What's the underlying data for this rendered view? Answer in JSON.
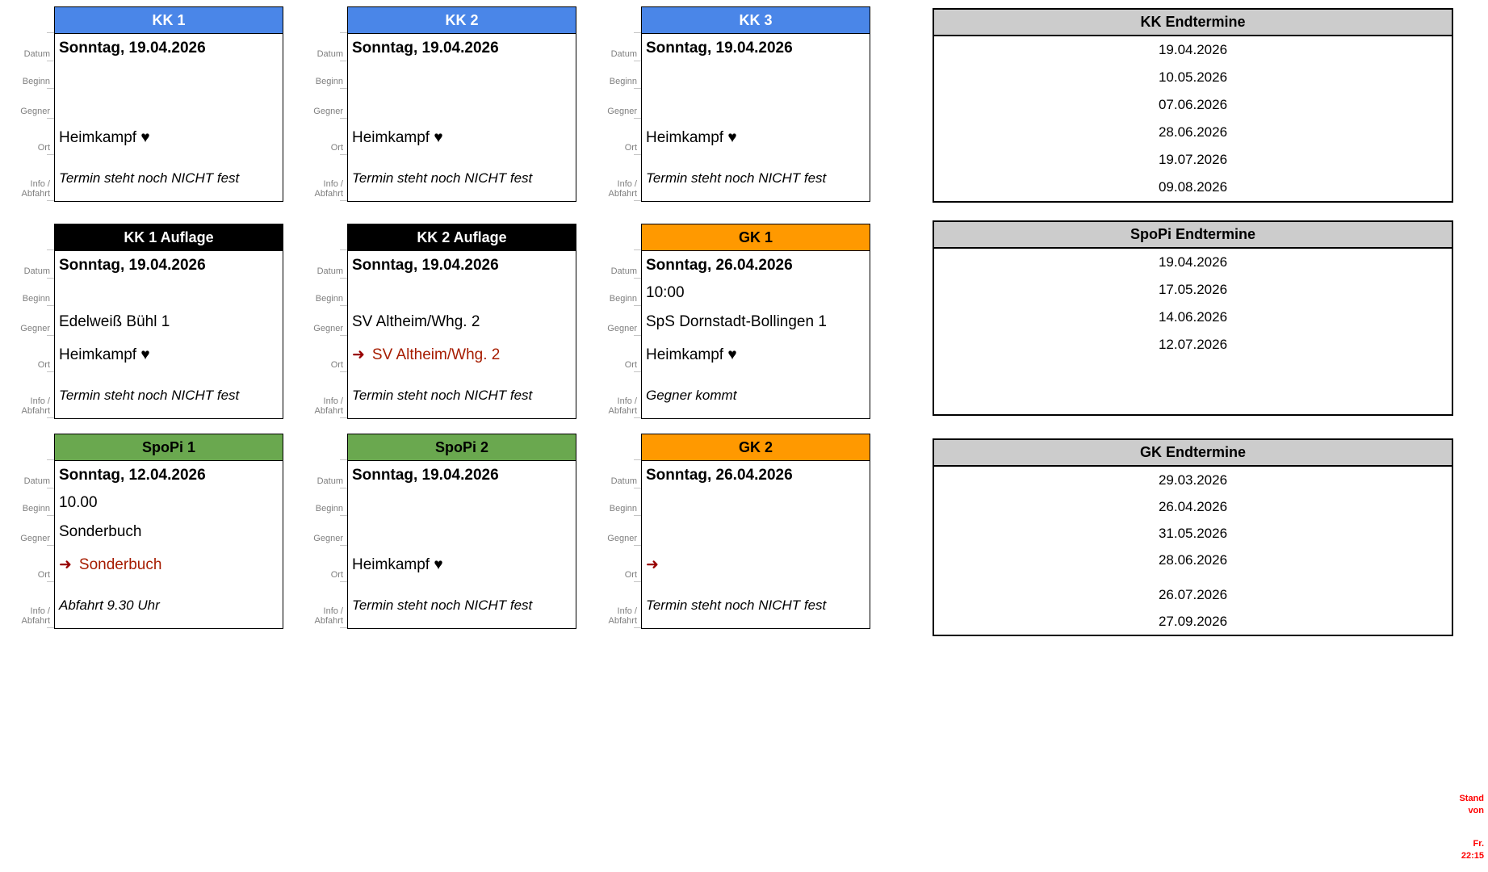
{
  "row_labels": [
    "Datum",
    "Beginn",
    "Gegner",
    "Ort",
    "Info / Abfahrt"
  ],
  "icons": {
    "away_arrow": "➜",
    "home_heart": "♥"
  },
  "colors": {
    "kk_header": "#4a86e8",
    "auflage_header": "#000000",
    "gk_header": "#ff9900",
    "spopi_header": "#6aa84f",
    "table_header_bg": "#cccccc",
    "away_arrow": "#980000",
    "away_text": "#a61c00",
    "stand": "#ff0000"
  },
  "cards": [
    {
      "title": "KK 1",
      "header_bg": "#4a86e8",
      "header_fg": "#ffffff",
      "datum": "Sonntag, 19.04.2026",
      "beginn": "",
      "gegner": "",
      "ort_arrow": "",
      "ort_text": "Heimkampf ♥",
      "away": false,
      "info": "Termin steht noch NICHT fest"
    },
    {
      "title": "KK 2",
      "header_bg": "#4a86e8",
      "header_fg": "#ffffff",
      "datum": "Sonntag, 19.04.2026",
      "beginn": "",
      "gegner": "",
      "ort_arrow": "",
      "ort_text": "Heimkampf ♥",
      "away": false,
      "info": "Termin steht noch NICHT fest"
    },
    {
      "title": "KK 3",
      "header_bg": "#4a86e8",
      "header_fg": "#ffffff",
      "datum": "Sonntag, 19.04.2026",
      "beginn": "",
      "gegner": "",
      "ort_arrow": "",
      "ort_text": "Heimkampf ♥",
      "away": false,
      "info": "Termin steht noch NICHT fest"
    },
    {
      "title": "KK 1 Auflage",
      "header_bg": "#000000",
      "header_fg": "#ffffff",
      "datum": "Sonntag, 19.04.2026",
      "beginn": "",
      "gegner": "Edelweiß Bühl 1",
      "ort_arrow": "",
      "ort_text": "Heimkampf ♥",
      "away": false,
      "info": "Termin steht noch NICHT fest"
    },
    {
      "title": "KK 2 Auflage",
      "header_bg": "#000000",
      "header_fg": "#ffffff",
      "datum": "Sonntag, 19.04.2026",
      "beginn": "",
      "gegner": "SV Altheim/Whg. 2",
      "ort_arrow": "➜",
      "ort_text": "SV Altheim/Whg. 2",
      "away": true,
      "info": "Termin steht noch NICHT fest"
    },
    {
      "title": "GK 1",
      "header_bg": "#ff9900",
      "header_fg": "#000000",
      "datum": "Sonntag, 26.04.2026",
      "beginn": "10:00",
      "gegner": "SpS Dornstadt-Bollingen 1",
      "ort_arrow": "",
      "ort_text": "Heimkampf ♥",
      "away": false,
      "info": "Gegner kommt"
    },
    {
      "title": "SpoPi 1",
      "header_bg": "#6aa84f",
      "header_fg": "#000000",
      "datum": "Sonntag, 12.04.2026",
      "beginn": "10.00",
      "gegner": "Sonderbuch",
      "ort_arrow": "➜",
      "ort_text": "Sonderbuch",
      "away": true,
      "info": "Abfahrt 9.30 Uhr"
    },
    {
      "title": "SpoPi 2",
      "header_bg": "#6aa84f",
      "header_fg": "#000000",
      "datum": "Sonntag, 19.04.2026",
      "beginn": "",
      "gegner": "",
      "ort_arrow": "",
      "ort_text": "Heimkampf ♥",
      "away": false,
      "info": "Termin steht noch NICHT fest"
    },
    {
      "title": "GK 2",
      "header_bg": "#ff9900",
      "header_fg": "#000000",
      "datum": "Sonntag, 26.04.2026",
      "beginn": "",
      "gegner": "",
      "ort_arrow": "➜",
      "ort_text": "",
      "away": true,
      "info": "Termin steht noch NICHT fest"
    }
  ],
  "tables": [
    {
      "title": "KK Endtermine",
      "dates": [
        "19.04.2026",
        "10.05.2026",
        "07.06.2026",
        "28.06.2026",
        "19.07.2026",
        "09.08.2026"
      ]
    },
    {
      "title": "SpoPi Endtermine",
      "dates": [
        "19.04.2026",
        "17.05.2026",
        "14.06.2026",
        "12.07.2026"
      ]
    },
    {
      "title": "GK Endtermine",
      "dates": [
        "29.03.2026",
        "26.04.2026",
        "31.05.2026",
        "28.06.2026",
        "26.07.2026",
        "27.09.2026"
      ]
    }
  ],
  "stand": {
    "label": "Stand von",
    "value": "Fr. 22:15"
  }
}
